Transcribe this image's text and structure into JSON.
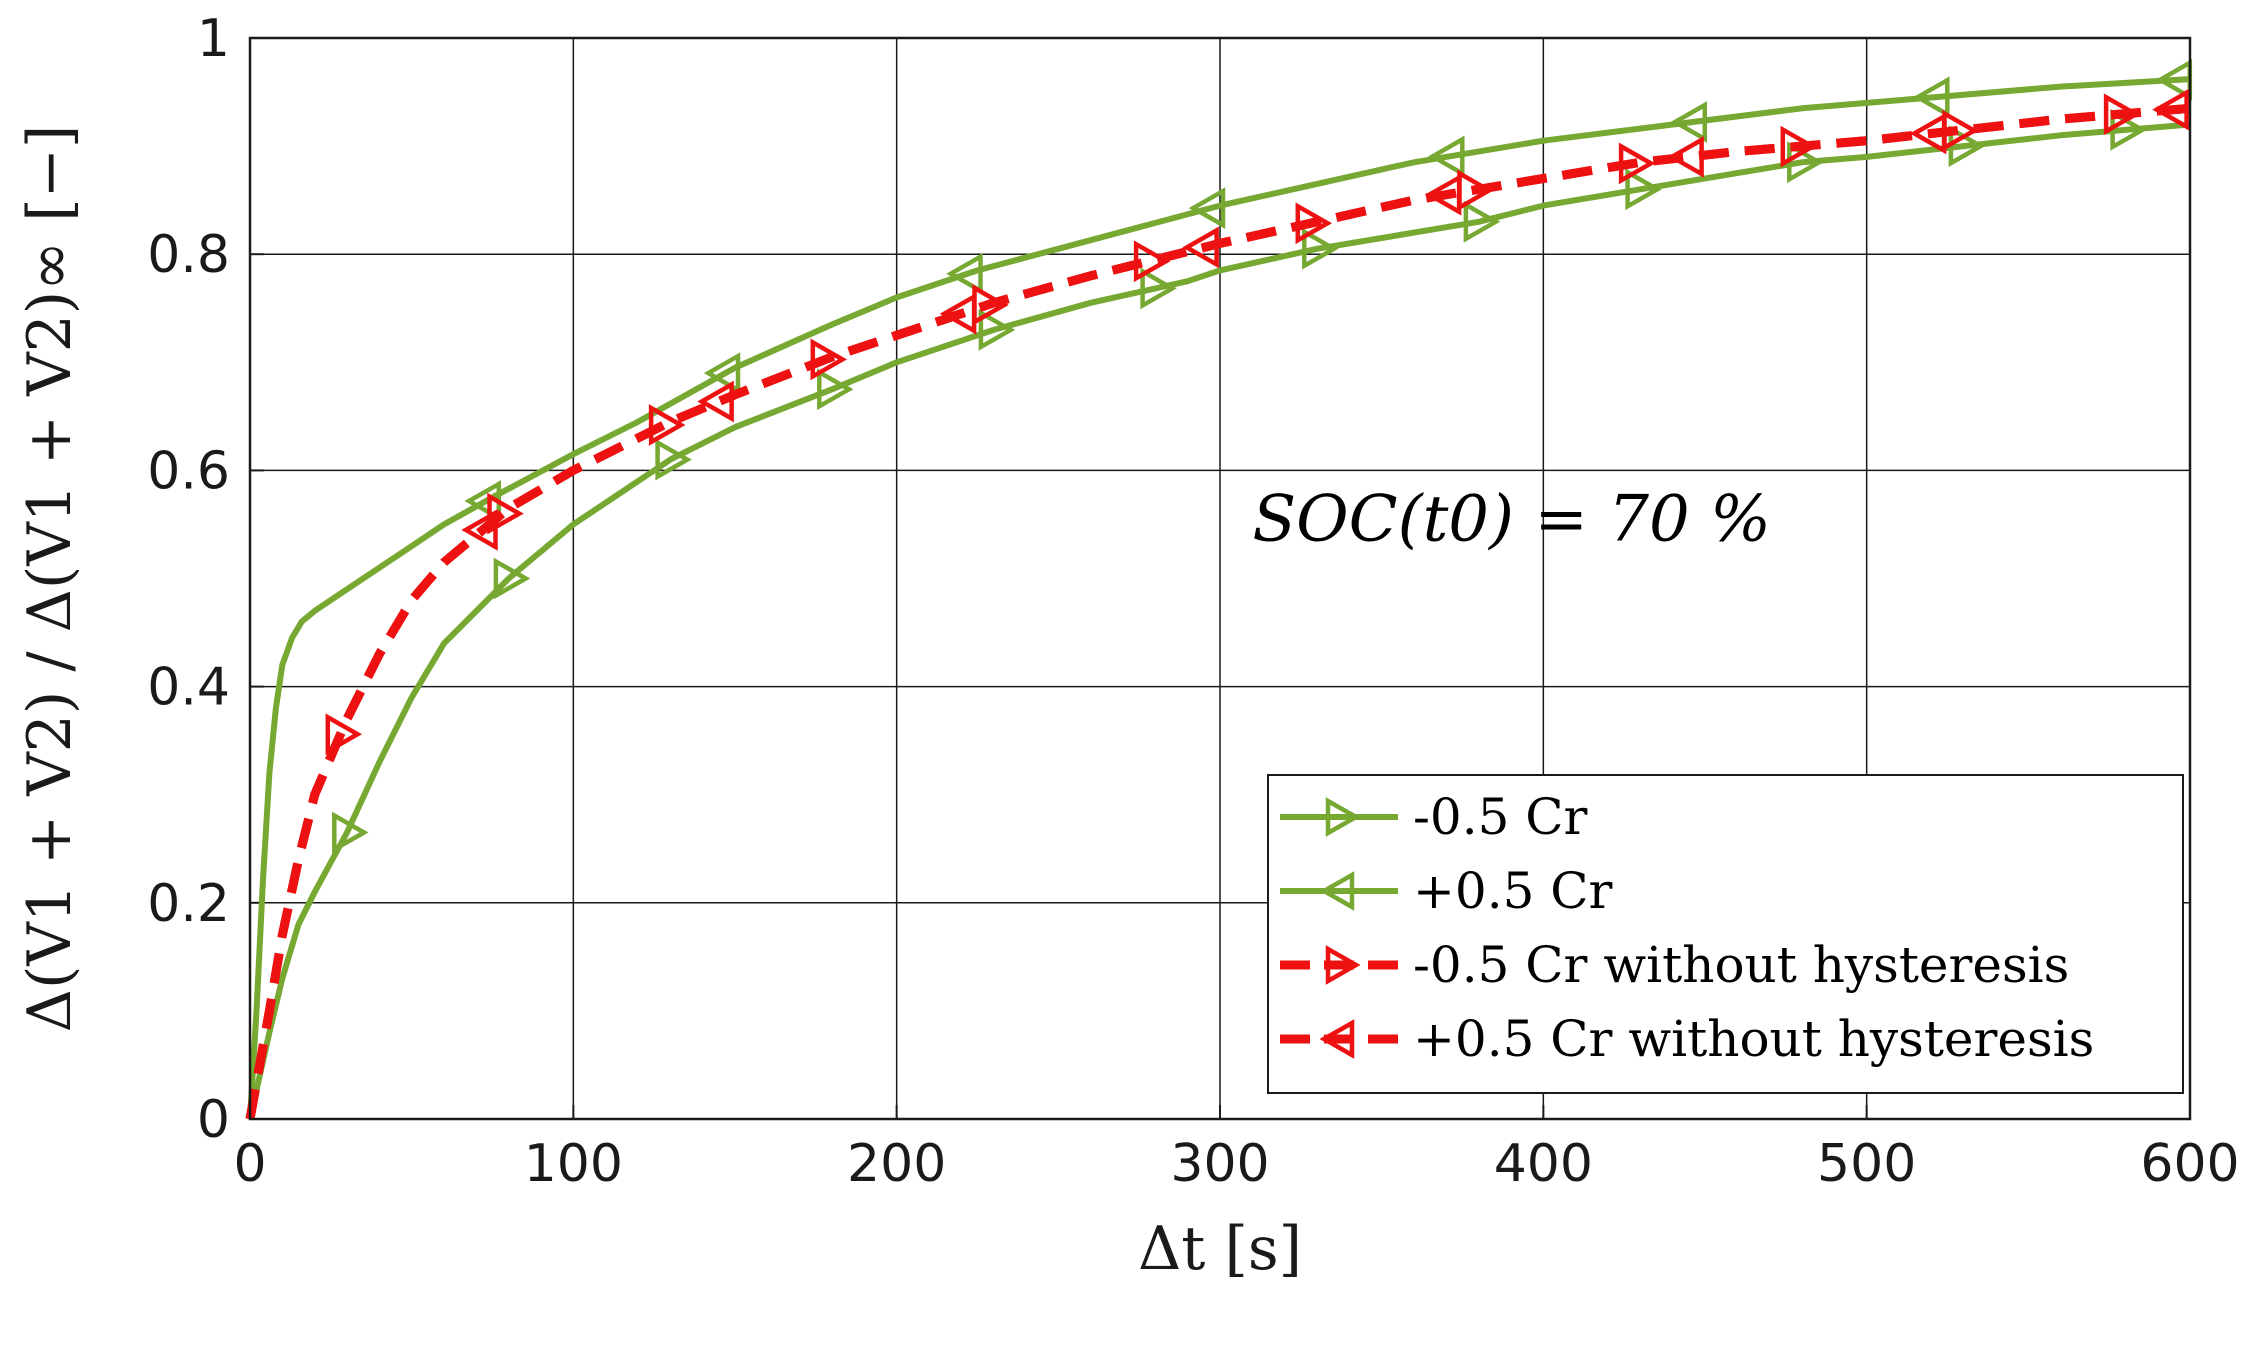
{
  "chart_data": {
    "type": "line",
    "title": "",
    "xlabel": "Δt [s]",
    "ylabel": "Δ(V1 + V2) / Δ(V1 + V2)∞ [−]",
    "xlim": [
      0,
      600
    ],
    "ylim": [
      0,
      1
    ],
    "x_ticks": [
      "0",
      "100",
      "200",
      "300",
      "400",
      "500",
      "600"
    ],
    "y_ticks": [
      "0",
      "0.2",
      "0.4",
      "0.6",
      "0.8",
      "1"
    ],
    "grid": true,
    "annotation": "SOC(t0) = 70 %",
    "legend_position": "bottom-right",
    "series": [
      {
        "name": "-0.5 Cr",
        "legend_label": "-0.5 Cr",
        "color": "#76a832",
        "style": "solid",
        "marker": "triangle-right",
        "x": [
          0,
          3,
          6,
          10,
          15,
          20,
          30,
          40,
          50,
          60,
          80,
          100,
          130,
          150,
          180,
          200,
          230,
          260,
          290,
          300,
          330,
          360,
          380,
          400,
          430,
          460,
          480,
          500,
          530,
          560,
          580,
          600
        ],
        "y": [
          0,
          0.04,
          0.08,
          0.13,
          0.18,
          0.21,
          0.265,
          0.33,
          0.39,
          0.44,
          0.5,
          0.55,
          0.61,
          0.64,
          0.675,
          0.7,
          0.73,
          0.755,
          0.775,
          0.785,
          0.805,
          0.82,
          0.83,
          0.845,
          0.86,
          0.875,
          0.885,
          0.89,
          0.9,
          0.91,
          0.915,
          0.92
        ],
        "marker_x": [
          30,
          80,
          130,
          180,
          230,
          280,
          330,
          380,
          430,
          480,
          530,
          580
        ]
      },
      {
        "name": "+0.5 Cr",
        "legend_label": "+0.5 Cr",
        "color": "#76a832",
        "style": "solid",
        "marker": "triangle-left",
        "x": [
          0,
          2,
          4,
          6,
          8,
          10,
          13,
          16,
          20,
          30,
          40,
          50,
          60,
          75,
          100,
          120,
          150,
          180,
          200,
          225,
          250,
          275,
          300,
          330,
          360,
          400,
          440,
          480,
          520,
          560,
          600
        ],
        "y": [
          0,
          0.1,
          0.22,
          0.32,
          0.38,
          0.42,
          0.445,
          0.46,
          0.47,
          0.49,
          0.51,
          0.53,
          0.55,
          0.575,
          0.615,
          0.645,
          0.695,
          0.735,
          0.76,
          0.785,
          0.805,
          0.825,
          0.845,
          0.865,
          0.885,
          0.905,
          0.92,
          0.935,
          0.945,
          0.955,
          0.962
        ],
        "marker_x": [
          73,
          147,
          222,
          297,
          371,
          446,
          521,
          596
        ]
      },
      {
        "name": "-0.5 Cr without hysteresis",
        "legend_label": "-0.5 Cr without hysteresis",
        "color": "#ee1111",
        "style": "dashed",
        "marker": "triangle-right",
        "x": [
          0,
          3,
          6,
          10,
          15,
          20,
          25,
          30,
          40,
          50,
          60,
          70,
          80,
          100,
          130,
          150,
          180,
          200,
          230,
          260,
          280,
          300,
          330,
          360,
          380,
          400,
          430,
          460,
          480,
          500,
          530,
          560,
          580,
          600
        ],
        "y": [
          0,
          0.05,
          0.1,
          0.17,
          0.24,
          0.3,
          0.335,
          0.37,
          0.43,
          0.48,
          0.515,
          0.54,
          0.565,
          0.6,
          0.645,
          0.67,
          0.705,
          0.725,
          0.755,
          0.78,
          0.795,
          0.81,
          0.83,
          0.85,
          0.86,
          0.87,
          0.885,
          0.895,
          0.9,
          0.905,
          0.915,
          0.925,
          0.93,
          0.935
        ],
        "marker_x": [
          28,
          78,
          128,
          178,
          228,
          278,
          328,
          378,
          428,
          478,
          528,
          578
        ]
      },
      {
        "name": "+0.5 Cr without hysteresis",
        "legend_label": "+0.5 Cr without hysteresis",
        "color": "#ee1111",
        "style": "dashed",
        "marker": "triangle-left",
        "x": [
          0,
          3,
          6,
          10,
          15,
          20,
          25,
          30,
          40,
          50,
          60,
          70,
          80,
          100,
          130,
          150,
          180,
          200,
          230,
          260,
          280,
          300,
          330,
          360,
          380,
          400,
          430,
          460,
          480,
          500,
          530,
          560,
          580,
          600
        ],
        "y": [
          0,
          0.05,
          0.1,
          0.17,
          0.24,
          0.3,
          0.335,
          0.37,
          0.43,
          0.48,
          0.515,
          0.54,
          0.565,
          0.6,
          0.645,
          0.67,
          0.705,
          0.725,
          0.755,
          0.78,
          0.795,
          0.81,
          0.83,
          0.85,
          0.86,
          0.87,
          0.885,
          0.895,
          0.9,
          0.905,
          0.915,
          0.925,
          0.93,
          0.935
        ],
        "marker_x": [
          72,
          145,
          220,
          295,
          370,
          445,
          520,
          595
        ]
      }
    ]
  }
}
